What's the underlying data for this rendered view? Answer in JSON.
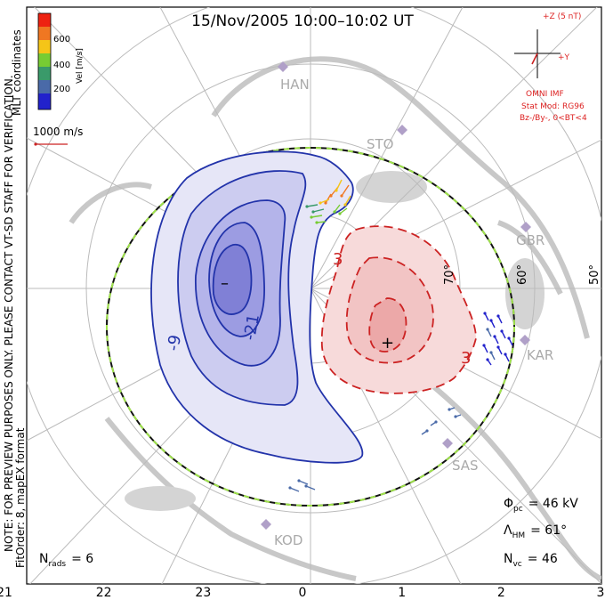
{
  "header": {
    "title": "15/Nov/2005 10:00–10:02 UT"
  },
  "colorbar": {
    "ticks": [
      "600",
      "400",
      "200"
    ],
    "label": "Vel [m/s]",
    "colors": [
      "#ee2211",
      "#f07722",
      "#f5c518",
      "#77cc33",
      "#3a9a6a",
      "#4a6aa8",
      "#2222cc"
    ]
  },
  "side": {
    "coords_label": "MLT coordinates",
    "note_line1": "NOTE: FOR PREVIEW PURPOSES ONLY. PLEASE CONTACT VT-SD STAFF FOR VERIFICATION.",
    "note_line2": "FitOrder: 8, mapEX format"
  },
  "scale": {
    "label": "1000 m/s"
  },
  "imf": {
    "bz_label": "+Z (5 nT)",
    "by_label": "+Y",
    "source": "OMNI IMF",
    "model": "Stat Mod: RG96",
    "bins": "Bz-/By-, 0<BT<4"
  },
  "stations": [
    "HAN",
    "STO",
    "GBR",
    "KAR",
    "SAS",
    "KOD"
  ],
  "lat_labels": [
    "70°",
    "60°",
    "50°"
  ],
  "contour_labels": [
    "-9",
    "-21",
    "3",
    "3"
  ],
  "extrema": {
    "min_marker": "–",
    "max_marker": "+"
  },
  "stats": {
    "phi_symbol": "Φ",
    "phi_sub": "pc",
    "phi_value": "= 46 kV",
    "lambda_symbol": "Λ",
    "lambda_sub": "HM",
    "lambda_value": "= 61°",
    "nvc_symbol": "N",
    "nvc_sub": "vc",
    "nvc_value": "= 46",
    "nrads_symbol": "N",
    "nrads_sub": "rads",
    "nrads_value": "= 6"
  },
  "chart_data": {
    "type": "scatter",
    "title": "15/Nov/2005 10:00–10:02 UT",
    "x_axis_ticks": [
      "21",
      "22",
      "23",
      "0",
      "1",
      "2",
      "3"
    ],
    "cross_polar_cap_potential_kV": 46,
    "heppner_maynard_boundary_deg": 61,
    "n_vectors": 46,
    "n_radars": 6,
    "velocity_scale_m_s": [
      0,
      700
    ],
    "contours_kV": [
      -21,
      -9,
      3
    ],
    "latitude_circles_deg": [
      80,
      70,
      60,
      50
    ]
  }
}
